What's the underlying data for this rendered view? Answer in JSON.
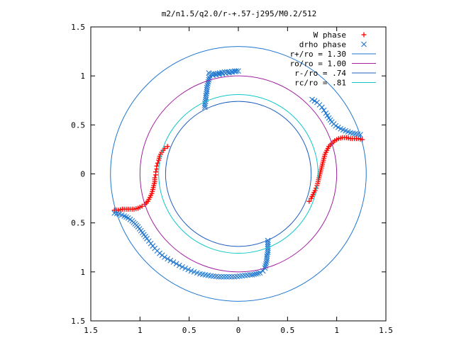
{
  "chart_data": {
    "type": "scatter",
    "title": "m2/n1.5/q2.0/r-+.57-j295/M0.2/512",
    "xlabel": "",
    "ylabel": "",
    "xlim": [
      -1.5,
      1.5
    ],
    "ylim": [
      -1.5,
      1.5
    ],
    "grid": false,
    "legend_position": "top-right",
    "x_ticks": [
      -1.5,
      -1,
      -0.5,
      0,
      0.5,
      1,
      1.5
    ],
    "x_tick_labels": [
      "1.5",
      "1",
      "0.5",
      "0",
      "0.5",
      "1",
      "1.5"
    ],
    "y_ticks": [
      1.5,
      1,
      0.5,
      0,
      -0.5,
      -1,
      -1.5
    ],
    "y_tick_labels": [
      "1.5",
      "1",
      "0.5",
      "0",
      "0.5",
      "1",
      "1.5"
    ],
    "series": [
      {
        "name": "W phase",
        "kind": "points",
        "marker": "plus",
        "color": "#ff0000",
        "segments": [
          [
            [
              -0.72,
              0.28
            ],
            [
              -0.75,
              0.26
            ],
            [
              -0.78,
              0.22
            ],
            [
              -0.8,
              0.18
            ],
            [
              -0.81,
              0.14
            ],
            [
              -0.82,
              0.11
            ],
            [
              -0.83,
              0.08
            ],
            [
              -0.83,
              0.05
            ],
            [
              -0.84,
              0.02
            ],
            [
              -0.84,
              -0.01
            ],
            [
              -0.85,
              -0.04
            ],
            [
              -0.85,
              -0.08
            ],
            [
              -0.86,
              -0.12
            ],
            [
              -0.87,
              -0.16
            ],
            [
              -0.88,
              -0.2
            ],
            [
              -0.9,
              -0.24
            ],
            [
              -0.92,
              -0.28
            ],
            [
              -0.95,
              -0.31
            ],
            [
              -0.98,
              -0.33
            ],
            [
              -1.02,
              -0.35
            ],
            [
              -1.06,
              -0.36
            ],
            [
              -1.1,
              -0.36
            ],
            [
              -1.14,
              -0.36
            ],
            [
              -1.18,
              -0.36
            ],
            [
              -1.22,
              -0.37
            ],
            [
              -1.26,
              -0.37
            ]
          ],
          [
            [
              1.26,
              0.35
            ],
            [
              1.22,
              0.36
            ],
            [
              1.18,
              0.36
            ],
            [
              1.14,
              0.36
            ],
            [
              1.1,
              0.37
            ],
            [
              1.06,
              0.37
            ],
            [
              1.02,
              0.36
            ],
            [
              0.98,
              0.34
            ],
            [
              0.95,
              0.31
            ],
            [
              0.92,
              0.28
            ],
            [
              0.9,
              0.24
            ],
            [
              0.88,
              0.2
            ],
            [
              0.87,
              0.16
            ],
            [
              0.86,
              0.12
            ],
            [
              0.85,
              0.08
            ],
            [
              0.84,
              0.04
            ],
            [
              0.83,
              0.0
            ],
            [
              0.82,
              -0.04
            ],
            [
              0.81,
              -0.08
            ],
            [
              0.8,
              -0.12
            ],
            [
              0.78,
              -0.17
            ],
            [
              0.76,
              -0.21
            ],
            [
              0.74,
              -0.25
            ],
            [
              0.72,
              -0.28
            ]
          ]
        ]
      },
      {
        "name": "drho phase",
        "kind": "points",
        "marker": "cross",
        "color": "#1f77d0",
        "segments": [
          [
            [
              -0.3,
              1.03
            ],
            [
              -0.27,
              1.02
            ],
            [
              -0.23,
              1.02
            ],
            [
              -0.19,
              1.03
            ],
            [
              -0.14,
              1.04
            ],
            [
              -0.09,
              1.04
            ],
            [
              -0.04,
              1.05
            ],
            [
              0.0,
              1.05
            ],
            [
              -0.29,
              1.0
            ],
            [
              -0.3,
              0.96
            ],
            [
              -0.31,
              0.92
            ],
            [
              -0.32,
              0.88
            ],
            [
              -0.32,
              0.84
            ],
            [
              -0.33,
              0.8
            ],
            [
              -0.33,
              0.76
            ],
            [
              -0.34,
              0.72
            ],
            [
              -0.34,
              0.68
            ]
          ],
          [
            [
              0.75,
              0.76
            ],
            [
              0.8,
              0.73
            ],
            [
              0.85,
              0.68
            ],
            [
              0.89,
              0.62
            ],
            [
              0.92,
              0.57
            ],
            [
              0.95,
              0.53
            ],
            [
              0.99,
              0.49
            ],
            [
              1.04,
              0.46
            ],
            [
              1.09,
              0.44
            ],
            [
              1.14,
              0.42
            ],
            [
              1.19,
              0.41
            ],
            [
              1.24,
              0.4
            ]
          ],
          [
            [
              -1.26,
              -0.4
            ],
            [
              -1.21,
              -0.41
            ],
            [
              -1.16,
              -0.43
            ],
            [
              -1.12,
              -0.45
            ],
            [
              -1.08,
              -0.48
            ],
            [
              -1.05,
              -0.51
            ],
            [
              -1.02,
              -0.54
            ],
            [
              -0.99,
              -0.58
            ],
            [
              -0.96,
              -0.62
            ],
            [
              -0.93,
              -0.66
            ],
            [
              -0.89,
              -0.71
            ],
            [
              -0.85,
              -0.76
            ],
            [
              -0.8,
              -0.81
            ],
            [
              -0.75,
              -0.85
            ],
            [
              -0.66,
              -0.9
            ],
            [
              -0.57,
              -0.95
            ],
            [
              -0.48,
              -0.99
            ],
            [
              -0.39,
              -1.02
            ],
            [
              -0.28,
              -1.04
            ],
            [
              -0.2,
              -1.05
            ],
            [
              -0.12,
              -1.05
            ],
            [
              -0.04,
              -1.05
            ],
            [
              0.04,
              -1.04
            ],
            [
              0.12,
              -1.03
            ]
          ],
          [
            [
              0.3,
              -0.68
            ],
            [
              0.3,
              -0.72
            ],
            [
              0.3,
              -0.76
            ],
            [
              0.3,
              -0.8
            ],
            [
              0.29,
              -0.84
            ],
            [
              0.29,
              -0.88
            ],
            [
              0.28,
              -0.92
            ],
            [
              0.27,
              -0.96
            ],
            [
              0.25,
              -0.99
            ],
            [
              0.22,
              -1.01
            ],
            [
              0.18,
              -1.02
            ],
            [
              0.14,
              -1.03
            ]
          ]
        ]
      },
      {
        "name": "r+/ro = 1.30",
        "kind": "circle",
        "radius": 1.3,
        "color": "#1f77d0"
      },
      {
        "name": "ro/ro = 1.00",
        "kind": "circle",
        "radius": 1.0,
        "color": "#a020a0"
      },
      {
        "name": "r-/ro = .74",
        "kind": "circle",
        "radius": 0.74,
        "color": "#2060c0"
      },
      {
        "name": "rc/ro = .81",
        "kind": "circle",
        "radius": 0.81,
        "color": "#10c8c8"
      }
    ]
  }
}
